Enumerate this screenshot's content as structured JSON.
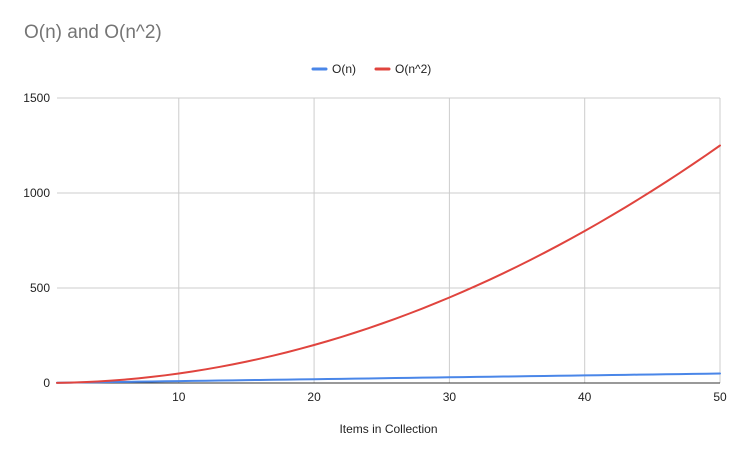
{
  "chart_data": {
    "type": "line",
    "title": "O(n) and O(n^2)",
    "xlabel": "Items in Collection",
    "ylabel": "",
    "xlim": [
      1,
      50
    ],
    "ylim": [
      0,
      1500
    ],
    "x_ticks": [
      10,
      20,
      30,
      40,
      50
    ],
    "y_ticks": [
      0,
      500,
      1000,
      1500
    ],
    "grid": true,
    "legend_position": "top",
    "x": [
      1,
      2,
      3,
      4,
      5,
      6,
      7,
      8,
      9,
      10,
      11,
      12,
      13,
      14,
      15,
      16,
      17,
      18,
      19,
      20,
      21,
      22,
      23,
      24,
      25,
      26,
      27,
      28,
      29,
      30,
      31,
      32,
      33,
      34,
      35,
      36,
      37,
      38,
      39,
      40,
      41,
      42,
      43,
      44,
      45,
      46,
      47,
      48,
      49,
      50
    ],
    "series": [
      {
        "name": "O(n)",
        "color": "#4a86e8",
        "values": [
          1,
          2,
          3,
          4,
          5,
          6,
          7,
          8,
          9,
          10,
          11,
          12,
          13,
          14,
          15,
          16,
          17,
          18,
          19,
          20,
          21,
          22,
          23,
          24,
          25,
          26,
          27,
          28,
          29,
          30,
          31,
          32,
          33,
          34,
          35,
          36,
          37,
          38,
          39,
          40,
          41,
          42,
          43,
          44,
          45,
          46,
          47,
          48,
          49,
          50
        ]
      },
      {
        "name": "O(n^2)",
        "color": "#e0443e",
        "values": [
          0.5,
          2,
          4.5,
          8,
          12.5,
          18,
          24.5,
          32,
          40.5,
          50,
          60.5,
          72,
          84.5,
          98,
          112.5,
          128,
          144.5,
          162,
          180.5,
          200,
          220.5,
          242,
          264.5,
          288,
          312.5,
          338,
          364.5,
          392,
          420.5,
          450,
          480.5,
          512,
          544.5,
          578,
          612.5,
          648,
          684.5,
          722,
          760.5,
          800,
          840.5,
          882,
          924.5,
          968,
          1012.5,
          1058,
          1104.5,
          1152,
          1200.5,
          1250
        ]
      }
    ]
  }
}
